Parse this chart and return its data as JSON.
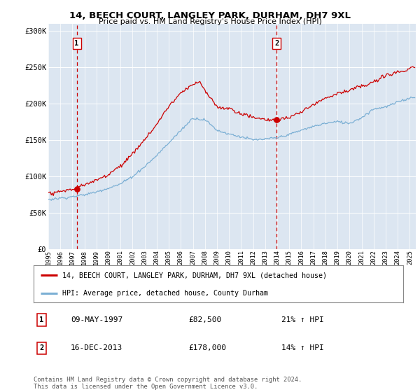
{
  "title": "14, BEECH COURT, LANGLEY PARK, DURHAM, DH7 9XL",
  "subtitle": "Price paid vs. HM Land Registry's House Price Index (HPI)",
  "legend_label_red": "14, BEECH COURT, LANGLEY PARK, DURHAM, DH7 9XL (detached house)",
  "legend_label_blue": "HPI: Average price, detached house, County Durham",
  "sale1_date": "09-MAY-1997",
  "sale1_price": "£82,500",
  "sale1_hpi": "21% ↑ HPI",
  "sale2_date": "16-DEC-2013",
  "sale2_price": "£178,000",
  "sale2_hpi": "14% ↑ HPI",
  "footer": "Contains HM Land Registry data © Crown copyright and database right 2024.\nThis data is licensed under the Open Government Licence v3.0.",
  "ylim": [
    0,
    310000
  ],
  "yticks": [
    0,
    50000,
    100000,
    150000,
    200000,
    250000,
    300000
  ],
  "ytick_labels": [
    "£0",
    "£50K",
    "£100K",
    "£150K",
    "£200K",
    "£250K",
    "£300K"
  ],
  "plot_bg_color": "#dce6f1",
  "grid_color": "#ffffff",
  "red_line_color": "#cc0000",
  "blue_line_color": "#7bafd4",
  "dashed_line_color": "#cc0000",
  "sale1_x_year": 1997.36,
  "sale2_x_year": 2013.96,
  "sale1_y": 82500,
  "sale2_y": 178000,
  "xmin": 1995.0,
  "xmax": 2025.5
}
